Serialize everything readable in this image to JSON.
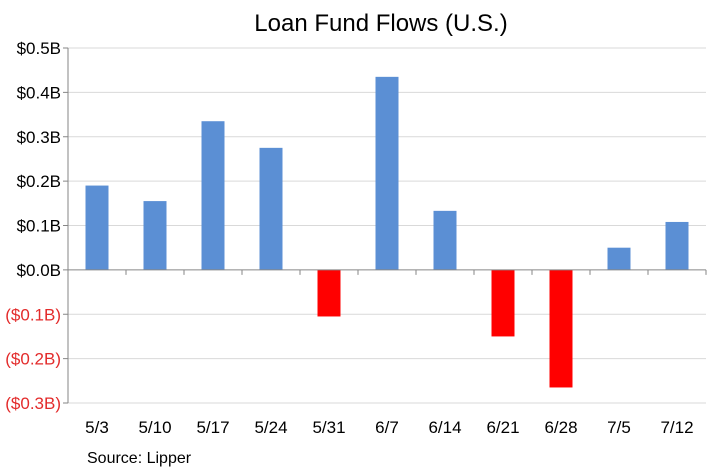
{
  "chart_data": {
    "type": "bar",
    "title": "Loan Fund Flows (U.S.)",
    "xlabel": "",
    "ylabel": "",
    "categories": [
      "5/3",
      "5/10",
      "5/17",
      "5/24",
      "5/31",
      "6/7",
      "6/14",
      "6/21",
      "6/28",
      "7/5",
      "7/12"
    ],
    "values": [
      0.19,
      0.155,
      0.335,
      0.275,
      -0.105,
      0.435,
      0.133,
      -0.15,
      -0.265,
      0.05,
      0.108
    ],
    "ylim": [
      -0.3,
      0.5
    ],
    "yticks": [
      0.5,
      0.4,
      0.3,
      0.2,
      0.1,
      0.0,
      -0.1,
      -0.2,
      -0.3
    ],
    "ytick_labels": [
      "$0.5B",
      "$0.4B",
      "$0.3B",
      "$0.2B",
      "$0.1B",
      "$0.0B",
      "($0.1B)",
      "($0.2B)",
      "($0.3B)"
    ],
    "grid": true,
    "colors": {
      "positive": "#5B8FD4",
      "negative": "#FF0000",
      "negative_tick": "#E32B2B",
      "grid": "#D9D9D9",
      "axis": "#868686"
    }
  },
  "footer": {
    "source": "Source: Lipper"
  }
}
